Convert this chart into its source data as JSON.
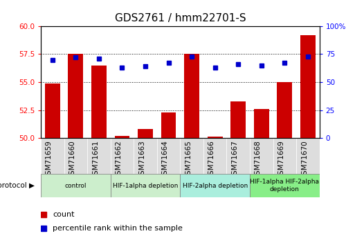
{
  "title": "GDS2761 / hmm22701-S",
  "samples": [
    "GSM71659",
    "GSM71660",
    "GSM71661",
    "GSM71662",
    "GSM71663",
    "GSM71664",
    "GSM71665",
    "GSM71666",
    "GSM71667",
    "GSM71668",
    "GSM71669",
    "GSM71670"
  ],
  "counts": [
    54.9,
    57.5,
    56.5,
    50.2,
    50.8,
    52.3,
    57.5,
    50.1,
    53.3,
    52.6,
    55.0,
    59.2
  ],
  "percentiles": [
    70,
    72,
    71,
    63,
    64,
    67,
    73,
    63,
    66,
    65,
    67,
    73
  ],
  "ylim_left": [
    50,
    60
  ],
  "ylim_right": [
    0,
    100
  ],
  "yticks_left": [
    50,
    52.5,
    55,
    57.5,
    60
  ],
  "yticks_right": [
    0,
    25,
    50,
    75,
    100
  ],
  "bar_color": "#cc0000",
  "dot_color": "#0000cc",
  "bar_bottom": 50,
  "protocol_groups": [
    {
      "label": "control",
      "start": 0,
      "end": 2,
      "color": "#cceecc"
    },
    {
      "label": "HIF-1alpha depletion",
      "start": 3,
      "end": 5,
      "color": "#cceecc"
    },
    {
      "label": "HIF-2alpha depletion",
      "start": 6,
      "end": 8,
      "color": "#aaeedd"
    },
    {
      "label": "HIF-1alpha HIF-2alpha\ndepletion",
      "start": 9,
      "end": 11,
      "color": "#88ee88"
    }
  ],
  "legend_count_label": "count",
  "legend_pct_label": "percentile rank within the sample",
  "protocol_label": "protocol",
  "title_fontsize": 11,
  "tick_fontsize": 7.5,
  "label_fontsize": 8
}
